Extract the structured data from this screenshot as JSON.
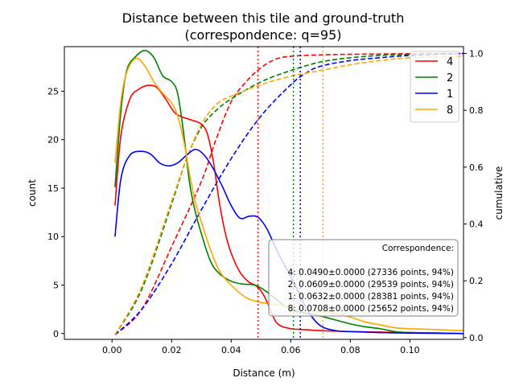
{
  "chart_data": {
    "type": "line",
    "title": "Distance between this tile and ground-truth",
    "subtitle": "(correspondence: q=95)",
    "xlabel": "Distance (m)",
    "ylabel": "count",
    "y2label": "cumulative",
    "xlim": [
      -0.016,
      0.118
    ],
    "ylim": [
      -0.6,
      29.6
    ],
    "y2lim": [
      -0.006,
      1.024
    ],
    "xticks": [
      {
        "value": 0.0,
        "label": "0.00"
      },
      {
        "value": 0.02,
        "label": "0.02"
      },
      {
        "value": 0.04,
        "label": "0.04"
      },
      {
        "value": 0.06,
        "label": "0.06"
      },
      {
        "value": 0.08,
        "label": "0.08"
      },
      {
        "value": 0.1,
        "label": "0.10"
      }
    ],
    "yticks": [
      {
        "value": 0,
        "label": "0"
      },
      {
        "value": 5,
        "label": "5"
      },
      {
        "value": 10,
        "label": "10"
      },
      {
        "value": 15,
        "label": "15"
      },
      {
        "value": 20,
        "label": "20"
      },
      {
        "value": 25,
        "label": "25"
      }
    ],
    "y2ticks": [
      {
        "value": 0.0,
        "label": "0.0"
      },
      {
        "value": 0.2,
        "label": "0.2"
      },
      {
        "value": 0.4,
        "label": "0.4"
      },
      {
        "value": 0.6,
        "label": "0.6"
      },
      {
        "value": 0.8,
        "label": "0.8"
      },
      {
        "value": 1.0,
        "label": "1.0"
      }
    ],
    "grid": false,
    "legend_position": "top-right",
    "series": [
      {
        "name": "4",
        "color": "#ff0000",
        "threshold": 0.049,
        "density": [
          [
            0.001,
            13.2
          ],
          [
            0.003,
            20.5
          ],
          [
            0.006,
            24.2
          ],
          [
            0.009,
            25.2
          ],
          [
            0.012,
            25.6
          ],
          [
            0.015,
            25.4
          ],
          [
            0.018,
            24.2
          ],
          [
            0.021,
            22.8
          ],
          [
            0.024,
            22.3
          ],
          [
            0.027,
            22.0
          ],
          [
            0.03,
            21.6
          ],
          [
            0.032,
            20.6
          ],
          [
            0.034,
            17.8
          ],
          [
            0.036,
            13.6
          ],
          [
            0.038,
            10.4
          ],
          [
            0.04,
            8.3
          ],
          [
            0.043,
            6.3
          ],
          [
            0.046,
            5.3
          ],
          [
            0.048,
            5.0
          ],
          [
            0.05,
            4.4
          ],
          [
            0.052,
            3.3
          ],
          [
            0.054,
            1.8
          ],
          [
            0.056,
            0.9
          ],
          [
            0.06,
            0.5
          ],
          [
            0.065,
            0.4
          ],
          [
            0.07,
            0.3
          ],
          [
            0.08,
            0.2
          ],
          [
            0.09,
            0.15
          ],
          [
            0.1,
            0.1
          ],
          [
            0.11,
            0.05
          ],
          [
            0.118,
            0.0
          ]
        ],
        "cumulative": [
          [
            0.001,
            0.01
          ],
          [
            0.01,
            0.1
          ],
          [
            0.02,
            0.32
          ],
          [
            0.03,
            0.55
          ],
          [
            0.035,
            0.7
          ],
          [
            0.04,
            0.83
          ],
          [
            0.045,
            0.9
          ],
          [
            0.05,
            0.95
          ],
          [
            0.055,
            0.98
          ],
          [
            0.06,
            0.99
          ],
          [
            0.07,
            0.995
          ],
          [
            0.08,
            0.997
          ],
          [
            0.1,
            0.999
          ],
          [
            0.118,
            1.0
          ]
        ]
      },
      {
        "name": "2",
        "color": "#008000",
        "threshold": 0.0609,
        "density": [
          [
            0.001,
            15.1
          ],
          [
            0.003,
            23.0
          ],
          [
            0.005,
            27.2
          ],
          [
            0.008,
            28.6
          ],
          [
            0.011,
            29.2
          ],
          [
            0.014,
            28.5
          ],
          [
            0.017,
            26.6
          ],
          [
            0.02,
            26.0
          ],
          [
            0.022,
            24.8
          ],
          [
            0.024,
            20.8
          ],
          [
            0.026,
            15.6
          ],
          [
            0.028,
            12.5
          ],
          [
            0.03,
            10.3
          ],
          [
            0.033,
            7.5
          ],
          [
            0.036,
            6.2
          ],
          [
            0.04,
            5.4
          ],
          [
            0.044,
            5.1
          ],
          [
            0.048,
            5.0
          ],
          [
            0.052,
            4.3
          ],
          [
            0.056,
            3.3
          ],
          [
            0.06,
            2.5
          ],
          [
            0.065,
            2.1
          ],
          [
            0.07,
            1.8
          ],
          [
            0.08,
            1.0
          ],
          [
            0.085,
            0.7
          ],
          [
            0.09,
            0.5
          ],
          [
            0.095,
            0.2
          ],
          [
            0.1,
            0.1
          ],
          [
            0.11,
            0.05
          ],
          [
            0.118,
            0.0
          ]
        ],
        "cumulative": [
          [
            0.001,
            0.01
          ],
          [
            0.01,
            0.17
          ],
          [
            0.02,
            0.47
          ],
          [
            0.025,
            0.63
          ],
          [
            0.03,
            0.74
          ],
          [
            0.035,
            0.8
          ],
          [
            0.04,
            0.84
          ],
          [
            0.05,
            0.9
          ],
          [
            0.06,
            0.94
          ],
          [
            0.07,
            0.97
          ],
          [
            0.08,
            0.985
          ],
          [
            0.09,
            0.993
          ],
          [
            0.1,
            0.997
          ],
          [
            0.118,
            1.0
          ]
        ]
      },
      {
        "name": "1",
        "color": "#0000ff",
        "threshold": 0.0632,
        "density": [
          [
            0.001,
            10.0
          ],
          [
            0.003,
            16.0
          ],
          [
            0.006,
            18.4
          ],
          [
            0.01,
            18.8
          ],
          [
            0.013,
            18.5
          ],
          [
            0.016,
            17.6
          ],
          [
            0.019,
            17.3
          ],
          [
            0.022,
            17.6
          ],
          [
            0.025,
            18.4
          ],
          [
            0.028,
            19.0
          ],
          [
            0.031,
            18.4
          ],
          [
            0.034,
            17.0
          ],
          [
            0.037,
            15.2
          ],
          [
            0.04,
            13.2
          ],
          [
            0.043,
            11.9
          ],
          [
            0.046,
            12.1
          ],
          [
            0.049,
            12.0
          ],
          [
            0.052,
            10.8
          ],
          [
            0.055,
            8.8
          ],
          [
            0.058,
            7.0
          ],
          [
            0.061,
            5.3
          ],
          [
            0.063,
            4.0
          ],
          [
            0.066,
            2.2
          ],
          [
            0.07,
            0.8
          ],
          [
            0.075,
            0.3
          ],
          [
            0.08,
            0.2
          ],
          [
            0.09,
            0.1
          ],
          [
            0.1,
            0.05
          ],
          [
            0.118,
            0.0
          ]
        ],
        "cumulative": [
          [
            0.001,
            0.01
          ],
          [
            0.01,
            0.1
          ],
          [
            0.02,
            0.26
          ],
          [
            0.03,
            0.45
          ],
          [
            0.04,
            0.63
          ],
          [
            0.05,
            0.78
          ],
          [
            0.06,
            0.89
          ],
          [
            0.065,
            0.93
          ],
          [
            0.07,
            0.955
          ],
          [
            0.08,
            0.975
          ],
          [
            0.09,
            0.985
          ],
          [
            0.1,
            0.993
          ],
          [
            0.118,
            1.0
          ]
        ]
      },
      {
        "name": "8",
        "color": "#ffa500",
        "threshold": 0.0708,
        "density": [
          [
            0.001,
            17.6
          ],
          [
            0.003,
            24.0
          ],
          [
            0.005,
            27.0
          ],
          [
            0.008,
            28.4
          ],
          [
            0.011,
            27.6
          ],
          [
            0.014,
            26.0
          ],
          [
            0.017,
            24.8
          ],
          [
            0.02,
            23.8
          ],
          [
            0.022,
            22.5
          ],
          [
            0.024,
            20.0
          ],
          [
            0.026,
            16.5
          ],
          [
            0.028,
            13.5
          ],
          [
            0.03,
            11.5
          ],
          [
            0.033,
            8.7
          ],
          [
            0.036,
            6.5
          ],
          [
            0.04,
            5.0
          ],
          [
            0.045,
            3.7
          ],
          [
            0.05,
            3.2
          ],
          [
            0.055,
            3.0
          ],
          [
            0.06,
            2.7
          ],
          [
            0.065,
            2.5
          ],
          [
            0.07,
            2.3
          ],
          [
            0.075,
            2.1
          ],
          [
            0.08,
            1.7
          ],
          [
            0.085,
            1.2
          ],
          [
            0.09,
            0.9
          ],
          [
            0.095,
            0.6
          ],
          [
            0.1,
            0.5
          ],
          [
            0.11,
            0.4
          ],
          [
            0.118,
            0.3
          ]
        ],
        "cumulative": [
          [
            0.001,
            0.01
          ],
          [
            0.01,
            0.18
          ],
          [
            0.02,
            0.48
          ],
          [
            0.025,
            0.63
          ],
          [
            0.03,
            0.75
          ],
          [
            0.035,
            0.82
          ],
          [
            0.04,
            0.85
          ],
          [
            0.05,
            0.89
          ],
          [
            0.06,
            0.92
          ],
          [
            0.07,
            0.94
          ],
          [
            0.08,
            0.96
          ],
          [
            0.09,
            0.975
          ],
          [
            0.1,
            0.985
          ],
          [
            0.118,
            0.99
          ]
        ]
      }
    ],
    "annotation": {
      "title": "Correspondence:",
      "lines": [
        "4: 0.0490±0.0000 (27336 points, 94%)",
        "2: 0.0609±0.0000 (29539 points, 94%)",
        "1: 0.0632±0.0000 (28381 points, 94%)",
        "8: 0.0708±0.0000 (25652 points, 94%)"
      ]
    }
  }
}
